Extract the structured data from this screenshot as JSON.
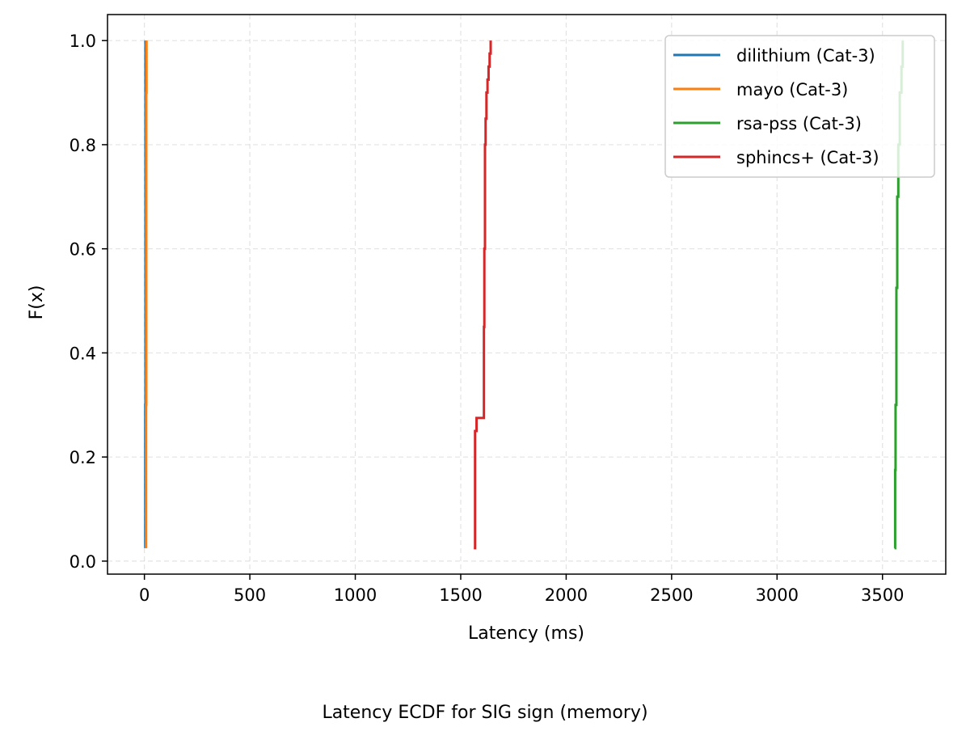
{
  "chart_data": {
    "type": "line",
    "subtype": "ecdf-step",
    "title": "",
    "caption": "Latency ECDF for SIG sign (memory)",
    "xlabel": "Latency (ms)",
    "ylabel": "F(x)",
    "xlim": [
      -175,
      3800
    ],
    "ylim": [
      -0.025,
      1.05
    ],
    "x_ticks": [
      0,
      500,
      1000,
      1500,
      2000,
      2500,
      3000,
      3500
    ],
    "y_ticks": [
      0.0,
      0.2,
      0.4,
      0.6,
      0.8,
      1.0
    ],
    "y_tick_labels": [
      "0.0",
      "0.2",
      "0.4",
      "0.6",
      "0.8",
      "1.0"
    ],
    "grid": true,
    "legend_position": "top-right",
    "series": [
      {
        "name": "dilithium (Cat-3)",
        "color": "#1f77b4",
        "x": [
          4,
          4,
          5,
          5,
          5
        ],
        "y": [
          0.025,
          0.3,
          0.6,
          0.9,
          1.0
        ]
      },
      {
        "name": "mayo (Cat-3)",
        "color": "#ff7f0e",
        "x": [
          8,
          8,
          9,
          9,
          10
        ],
        "y": [
          0.025,
          0.3,
          0.6,
          0.9,
          1.0
        ]
      },
      {
        "name": "rsa-pss (Cat-3)",
        "color": "#2ca02c",
        "x": [
          3557,
          3560,
          3562,
          3566,
          3570,
          3575,
          3582,
          3590,
          3596
        ],
        "y": [
          0.025,
          0.175,
          0.3,
          0.525,
          0.7,
          0.8,
          0.9,
          0.95,
          1.0
        ]
      },
      {
        "name": "sphincs+ (Cat-3)",
        "color": "#d62728",
        "x": [
          1562,
          1568,
          1575,
          1610,
          1612,
          1615,
          1618,
          1622,
          1627,
          1632,
          1637,
          1642
        ],
        "y": [
          0.025,
          0.25,
          0.275,
          0.45,
          0.6,
          0.8,
          0.85,
          0.9,
          0.925,
          0.95,
          0.975,
          1.0
        ]
      }
    ]
  }
}
